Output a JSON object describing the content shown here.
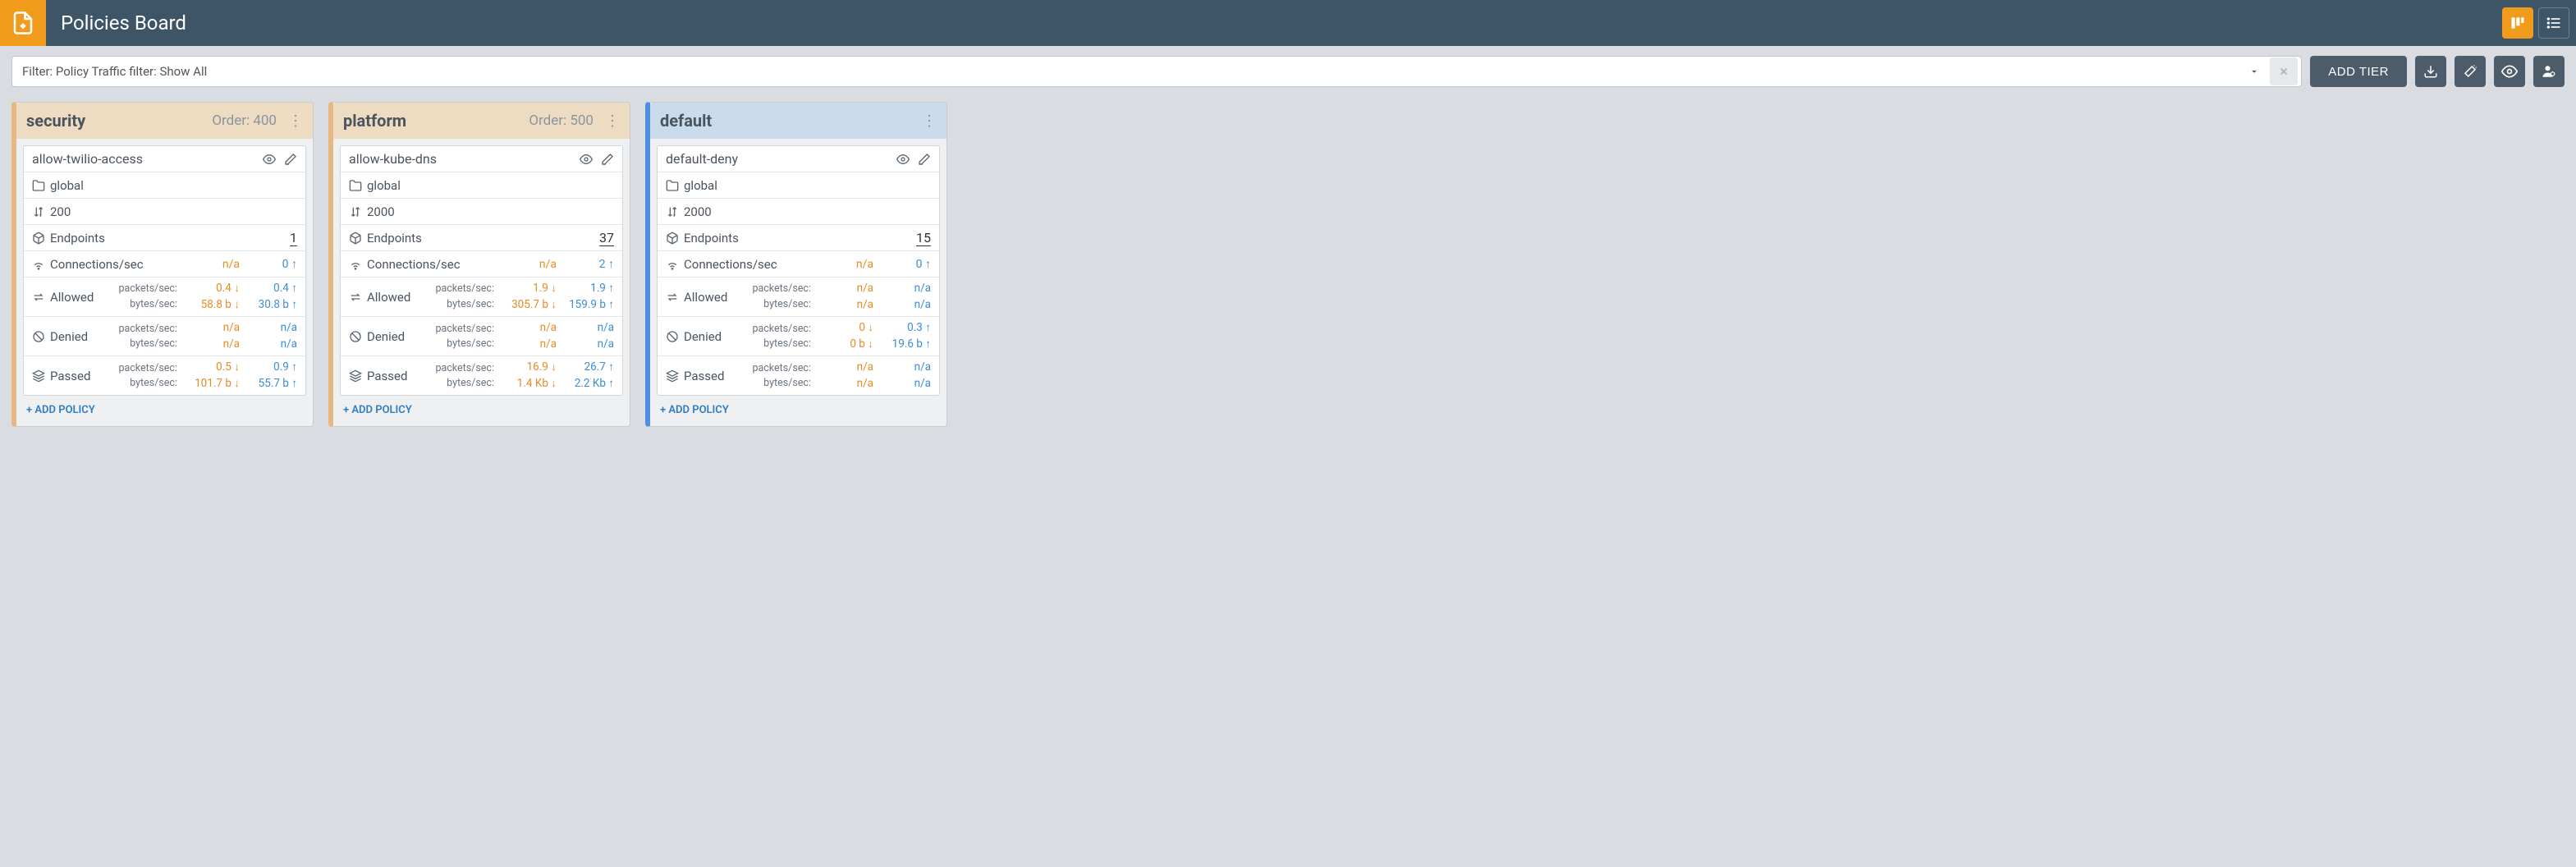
{
  "header": {
    "title": "Policies Board"
  },
  "toolbar": {
    "filter_text": "Filter: Policy Traffic filter: Show All",
    "add_tier_label": "ADD TIER"
  },
  "colors": {
    "header_bg": "#3e5567",
    "accent_orange": "#f09b1b",
    "btn_dark": "#4d5c6b",
    "board_bg": "#d9dce0",
    "tier_border_orange": "#e7b881",
    "tier_header_orange": "#eedcc2",
    "tier_border_blue": "#4f8fe0",
    "tier_header_blue": "#cadceb",
    "value_orange": "#e88b24",
    "value_blue": "#3b8dd6",
    "link_blue": "#2f7dc2"
  },
  "add_policy_label": "+ ADD POLICY",
  "row_labels": {
    "endpoints": "Endpoints",
    "connections": "Connections/sec",
    "allowed": "Allowed",
    "denied": "Denied",
    "passed": "Passed",
    "packets": "packets/sec:",
    "bytes": "bytes/sec:"
  },
  "tiers": [
    {
      "name": "security",
      "order_label": "Order: 400",
      "accent": "orange",
      "policy": {
        "title": "allow-twilio-access",
        "scope": "global",
        "priority": "200",
        "endpoints": "1",
        "connections": {
          "o": "n/a",
          "b": "0 ↑"
        },
        "allowed": {
          "packets": {
            "o": "0.4 ↓",
            "b": "0.4 ↑"
          },
          "bytes": {
            "o": "58.8 b ↓",
            "b": "30.8 b ↑"
          }
        },
        "denied": {
          "packets": {
            "o": "n/a",
            "b": "n/a"
          },
          "bytes": {
            "o": "n/a",
            "b": "n/a"
          }
        },
        "passed": {
          "packets": {
            "o": "0.5 ↓",
            "b": "0.9 ↑"
          },
          "bytes": {
            "o": "101.7 b ↓",
            "b": "55.7 b ↑"
          }
        }
      }
    },
    {
      "name": "platform",
      "order_label": "Order: 500",
      "accent": "orange",
      "policy": {
        "title": "allow-kube-dns",
        "scope": "global",
        "priority": "2000",
        "endpoints": "37",
        "connections": {
          "o": "n/a",
          "b": "2 ↑"
        },
        "allowed": {
          "packets": {
            "o": "1.9 ↓",
            "b": "1.9 ↑"
          },
          "bytes": {
            "o": "305.7 b ↓",
            "b": "159.9 b ↑"
          }
        },
        "denied": {
          "packets": {
            "o": "n/a",
            "b": "n/a"
          },
          "bytes": {
            "o": "n/a",
            "b": "n/a"
          }
        },
        "passed": {
          "packets": {
            "o": "16.9 ↓",
            "b": "26.7 ↑"
          },
          "bytes": {
            "o": "1.4 Kb ↓",
            "b": "2.2 Kb ↑"
          }
        }
      }
    },
    {
      "name": "default",
      "order_label": "",
      "accent": "blue",
      "policy": {
        "title": "default-deny",
        "scope": "global",
        "priority": "2000",
        "endpoints": "15",
        "connections": {
          "o": "n/a",
          "b": "0 ↑"
        },
        "allowed": {
          "packets": {
            "o": "n/a",
            "b": "n/a"
          },
          "bytes": {
            "o": "n/a",
            "b": "n/a"
          }
        },
        "denied": {
          "packets": {
            "o": "0 ↓",
            "b": "0.3 ↑"
          },
          "bytes": {
            "o": "0 b ↓",
            "b": "19.6 b ↑"
          }
        },
        "passed": {
          "packets": {
            "o": "n/a",
            "b": "n/a"
          },
          "bytes": {
            "o": "n/a",
            "b": "n/a"
          }
        }
      }
    }
  ]
}
